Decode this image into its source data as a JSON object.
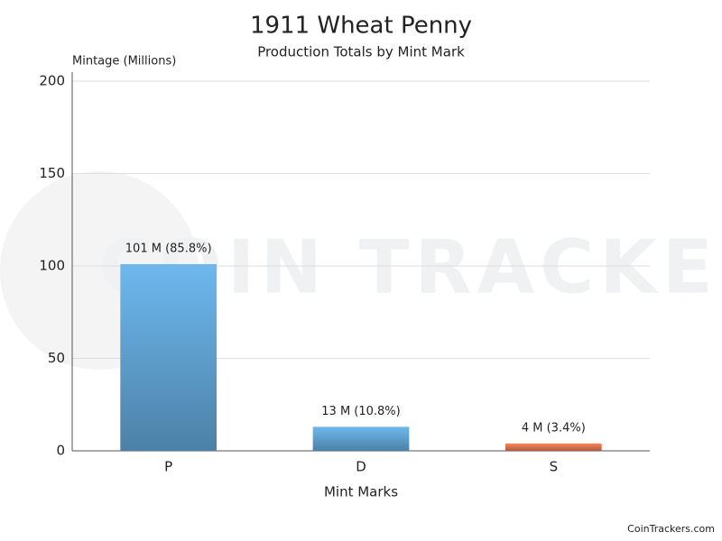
{
  "chart_data": {
    "type": "bar",
    "title": "1911 Wheat Penny",
    "subtitle": "Production Totals by Mint Mark",
    "y_label": "Mintage (Millions)",
    "x_label": "Mint Marks",
    "categories": [
      "P",
      "D",
      "S"
    ],
    "values": [
      101,
      13,
      4
    ],
    "value_labels": [
      "101 M (85.8%)",
      "13 M (10.8%)",
      "4 M (3.4%)"
    ],
    "colors": [
      "#6db8ee",
      "#6db8ee",
      "#f9855a"
    ],
    "ylim": [
      0,
      200
    ],
    "yticks": [
      0,
      50,
      100,
      150,
      200
    ],
    "grid": true,
    "watermark": "COIN TRACKERS",
    "credit": "CoinTrackers.com"
  }
}
